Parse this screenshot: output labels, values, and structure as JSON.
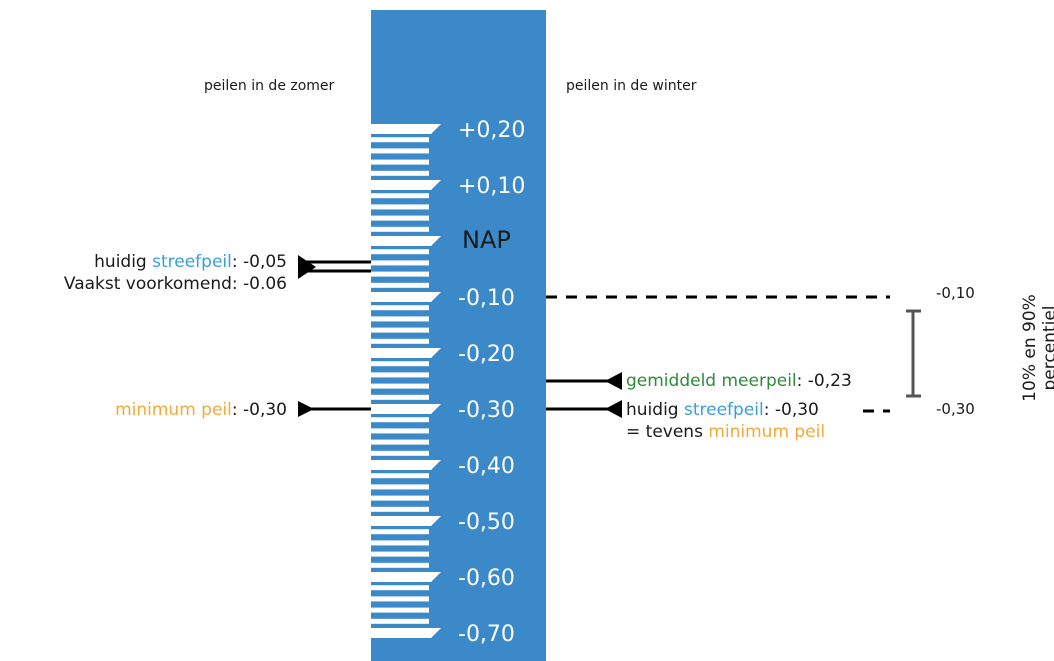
{
  "headers": {
    "summer": "peilen in de zomer",
    "winter": "peilen in de winter"
  },
  "gauge": {
    "center_label": "NAP",
    "ticks": [
      {
        "value": 0.2,
        "label": "+0,20"
      },
      {
        "value": 0.1,
        "label": "+0,10"
      },
      {
        "value": -0.1,
        "label": "-0,10"
      },
      {
        "value": -0.2,
        "label": "-0,20"
      },
      {
        "value": -0.3,
        "label": "-0,30"
      },
      {
        "value": -0.4,
        "label": "-0,40"
      },
      {
        "value": -0.5,
        "label": "-0,50"
      },
      {
        "value": -0.6,
        "label": "-0,60"
      },
      {
        "value": -0.7,
        "label": "-0,70"
      }
    ],
    "color": "#3b89c9"
  },
  "summer": {
    "streefpeil": {
      "prefix": "huidig ",
      "key": "streefpeil",
      "value": ": -0,05"
    },
    "vaakst": "Vaakst voorkomend: -0.06",
    "minimum": {
      "key": "minimum peil",
      "value": ": -0,30"
    }
  },
  "winter": {
    "gemiddeld": {
      "key": "gemiddeld meerpeil",
      "value": ": -0,23"
    },
    "streefpeil": {
      "prefix": "huidig ",
      "key": "streefpeil",
      "value": ": -0,30"
    },
    "tevens": {
      "prefix": "= tevens ",
      "key": "minimum peil"
    }
  },
  "percentile": {
    "top_label": "-0,10",
    "bottom_label": "-0,30",
    "title_line1": "10% en 90%",
    "title_line2": "percentiel"
  },
  "colors": {
    "blue": "#3a9fd9",
    "orange": "#f2a93b",
    "green": "#2f8a3a"
  }
}
